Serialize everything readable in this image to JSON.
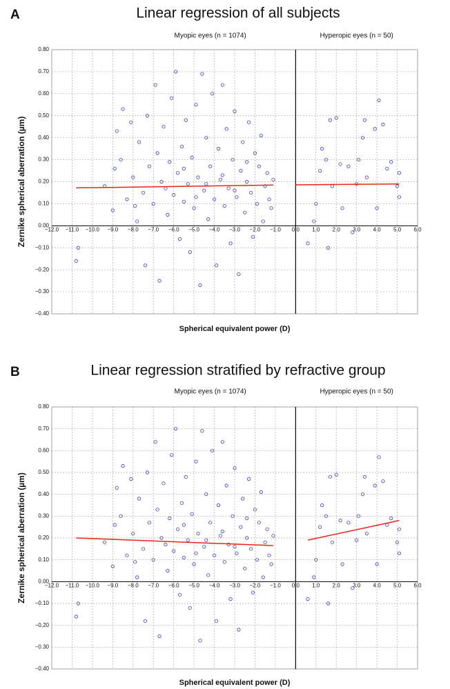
{
  "chart_data": [
    {
      "type": "scatter",
      "panel": "A",
      "title": "Linear regression of all subjects",
      "annotations": [
        "Myopic eyes (n = 1074)",
        "Hyperopic eyes (n = 50)"
      ],
      "xlabel": "Spherical equivalent power (D)",
      "ylabel": "Zernike spherical aberration (µm)",
      "xlim": [
        -12,
        6
      ],
      "ylim": [
        -0.4,
        0.8
      ],
      "grid": true,
      "xticks": [
        {
          "value": -12,
          "label": "−12.0"
        },
        {
          "value": -11,
          "label": "−11.0"
        },
        {
          "value": -10,
          "label": "−10.0"
        },
        {
          "value": -9,
          "label": "−9.0"
        },
        {
          "value": -8,
          "label": "−8.0"
        },
        {
          "value": -7,
          "label": "−7.0"
        },
        {
          "value": -6,
          "label": "−6.0"
        },
        {
          "value": -5,
          "label": "−5.0"
        },
        {
          "value": -4,
          "label": "−4.0"
        },
        {
          "value": -3,
          "label": "−3.0"
        },
        {
          "value": -2,
          "label": "−2.0"
        },
        {
          "value": -1,
          "label": "−1.0"
        },
        {
          "value": 0,
          "label": "0.0"
        },
        {
          "value": 1,
          "label": "1.0"
        },
        {
          "value": 2,
          "label": "2.0"
        },
        {
          "value": 3,
          "label": "3.0"
        },
        {
          "value": 4,
          "label": "4.0"
        },
        {
          "value": 5,
          "label": "5.0"
        },
        {
          "value": 6,
          "label": "6.0"
        }
      ],
      "yticks": [
        {
          "value": -0.4,
          "label": "−0.40"
        },
        {
          "value": -0.3,
          "label": "−0.30"
        },
        {
          "value": -0.2,
          "label": "−0.20"
        },
        {
          "value": -0.1,
          "label": "−0.10"
        },
        {
          "value": 0,
          "label": "0.00"
        },
        {
          "value": 0.1,
          "label": "0.10"
        },
        {
          "value": 0.2,
          "label": "0.20"
        },
        {
          "value": 0.3,
          "label": "0.30"
        },
        {
          "value": 0.4,
          "label": "0.40"
        },
        {
          "value": 0.5,
          "label": "0.50"
        },
        {
          "value": 0.6,
          "label": "0.60"
        },
        {
          "value": 0.7,
          "label": "0.70"
        },
        {
          "value": 0.8,
          "label": "0.80"
        }
      ],
      "points": {
        "color": "#3b3ba8",
        "x": [
          -10.8,
          -10.7,
          -9.4,
          -9.0,
          -8.8,
          -8.6,
          -8.5,
          -8.3,
          -8.1,
          -8.0,
          -7.8,
          -7.7,
          -7.5,
          -7.4,
          -7.3,
          -7.2,
          -7.0,
          -6.9,
          -6.8,
          -6.7,
          -6.6,
          -6.5,
          -6.3,
          -6.2,
          -6.1,
          -6.0,
          -5.9,
          -5.8,
          -5.7,
          -5.6,
          -5.5,
          -5.4,
          -5.3,
          -5.2,
          -5.1,
          -5.0,
          -4.9,
          -4.8,
          -4.7,
          -4.6,
          -4.5,
          -4.4,
          -4.3,
          -4.2,
          -4.1,
          -4.0,
          -3.9,
          -3.8,
          -3.7,
          -3.6,
          -3.5,
          -3.4,
          -3.3,
          -3.2,
          -3.1,
          -3.0,
          -2.9,
          -2.8,
          -2.7,
          -2.6,
          -2.5,
          -2.4,
          -2.3,
          -2.2,
          -2.1,
          -2.0,
          -1.9,
          -1.8,
          -1.7,
          -1.6,
          -1.5,
          -1.4,
          -1.3,
          -1.2,
          -1.1,
          -8.9,
          -7.9,
          -6.4,
          -5.5,
          -4.4,
          -3.6,
          -2.4,
          -4.9,
          -3.0,
          0.6,
          0.9,
          1.0,
          1.2,
          1.3,
          1.5,
          1.6,
          1.7,
          1.8,
          2.0,
          2.2,
          2.3,
          2.6,
          2.8,
          3.0,
          3.1,
          3.3,
          3.4,
          3.5,
          3.9,
          4.0,
          4.1,
          4.3,
          4.5,
          4.7,
          5.0,
          5.1,
          5.1
        ],
        "y": [
          -0.16,
          -0.1,
          0.18,
          0.07,
          0.43,
          0.3,
          0.53,
          0.12,
          0.47,
          0.22,
          0.02,
          0.38,
          0.15,
          -0.18,
          0.5,
          0.27,
          0.1,
          0.64,
          0.33,
          -0.25,
          0.2,
          0.45,
          0.05,
          0.29,
          0.58,
          0.14,
          0.7,
          0.24,
          -0.06,
          0.36,
          0.11,
          0.48,
          0.19,
          -0.12,
          0.31,
          0.08,
          0.55,
          0.22,
          -0.27,
          0.69,
          0.16,
          0.4,
          0.03,
          0.27,
          0.6,
          0.12,
          -0.18,
          0.35,
          0.21,
          0.64,
          0.09,
          0.44,
          0.17,
          -0.08,
          0.3,
          0.52,
          0.13,
          -0.22,
          0.25,
          0.38,
          0.06,
          0.2,
          0.47,
          0.15,
          -0.05,
          0.33,
          0.1,
          0.27,
          0.41,
          0.02,
          0.18,
          0.24,
          0.12,
          0.08,
          0.21,
          0.26,
          0.09,
          0.17,
          0.26,
          0.19,
          0.23,
          0.29,
          0.13,
          0.16,
          -0.08,
          0.02,
          0.1,
          0.25,
          0.35,
          0.3,
          -0.1,
          0.48,
          0.18,
          0.49,
          0.28,
          0.08,
          0.27,
          -0.03,
          0.19,
          0.3,
          0.4,
          0.48,
          0.22,
          0.44,
          0.08,
          0.57,
          0.46,
          0.26,
          0.29,
          0.18,
          0.13,
          0.24
        ]
      },
      "fits": [
        {
          "color": "#e8231e",
          "x": [
            -10.8,
            -1.1
          ],
          "y": [
            0.172,
            0.185
          ]
        },
        {
          "color": "#e8231e",
          "x": [
            0,
            5.1
          ],
          "y": [
            0.186,
            0.19
          ]
        }
      ]
    },
    {
      "type": "scatter",
      "panel": "B",
      "title": "Linear regression stratified by refractive group",
      "annotations": [
        "Myopic eyes (n = 1074)",
        "Hyperopic eyes (n = 50)"
      ],
      "xlabel": "Spherical equivalent power (D)",
      "ylabel": "Zernike spherical aberration (µm)",
      "xlim": [
        -12,
        6
      ],
      "ylim": [
        -0.4,
        0.8
      ],
      "grid": true,
      "xticks": [
        {
          "value": -12,
          "label": "−12.0"
        },
        {
          "value": -11,
          "label": "−11.0"
        },
        {
          "value": -10,
          "label": "−10.0"
        },
        {
          "value": -9,
          "label": "−9.0"
        },
        {
          "value": -8,
          "label": "−8.0"
        },
        {
          "value": -7,
          "label": "−7.0"
        },
        {
          "value": -6,
          "label": "−6.0"
        },
        {
          "value": -5,
          "label": "−5.0"
        },
        {
          "value": -4,
          "label": "−4.0"
        },
        {
          "value": -3,
          "label": "−3.0"
        },
        {
          "value": -2,
          "label": "−2.0"
        },
        {
          "value": -1,
          "label": "−1.0"
        },
        {
          "value": 0,
          "label": "0.0"
        },
        {
          "value": 1,
          "label": "1.0"
        },
        {
          "value": 2,
          "label": "2.0"
        },
        {
          "value": 3,
          "label": "3.0"
        },
        {
          "value": 4,
          "label": "4.0"
        },
        {
          "value": 5,
          "label": "5.0"
        },
        {
          "value": 6,
          "label": "6.0"
        }
      ],
      "yticks": [
        {
          "value": -0.4,
          "label": "−0.40"
        },
        {
          "value": -0.3,
          "label": "−0.30"
        },
        {
          "value": -0.2,
          "label": "−0.20"
        },
        {
          "value": -0.1,
          "label": "−0.10"
        },
        {
          "value": 0,
          "label": "0.00"
        },
        {
          "value": 0.1,
          "label": "0.10"
        },
        {
          "value": 0.2,
          "label": "0.20"
        },
        {
          "value": 0.3,
          "label": "0.30"
        },
        {
          "value": 0.4,
          "label": "0.40"
        },
        {
          "value": 0.5,
          "label": "0.50"
        },
        {
          "value": 0.6,
          "label": "0.60"
        },
        {
          "value": 0.7,
          "label": "0.70"
        },
        {
          "value": 0.8,
          "label": "0.80"
        }
      ],
      "points": {
        "color": "#3b3ba8",
        "x": [
          -10.8,
          -10.7,
          -9.4,
          -9.0,
          -8.8,
          -8.6,
          -8.5,
          -8.3,
          -8.1,
          -8.0,
          -7.8,
          -7.7,
          -7.5,
          -7.4,
          -7.3,
          -7.2,
          -7.0,
          -6.9,
          -6.8,
          -6.7,
          -6.6,
          -6.5,
          -6.3,
          -6.2,
          -6.1,
          -6.0,
          -5.9,
          -5.8,
          -5.7,
          -5.6,
          -5.5,
          -5.4,
          -5.3,
          -5.2,
          -5.1,
          -5.0,
          -4.9,
          -4.8,
          -4.7,
          -4.6,
          -4.5,
          -4.4,
          -4.3,
          -4.2,
          -4.1,
          -4.0,
          -3.9,
          -3.8,
          -3.7,
          -3.6,
          -3.5,
          -3.4,
          -3.3,
          -3.2,
          -3.1,
          -3.0,
          -2.9,
          -2.8,
          -2.7,
          -2.6,
          -2.5,
          -2.4,
          -2.3,
          -2.2,
          -2.1,
          -2.0,
          -1.9,
          -1.8,
          -1.7,
          -1.6,
          -1.5,
          -1.4,
          -1.3,
          -1.2,
          -1.1,
          -8.9,
          -7.9,
          -6.4,
          -5.5,
          -4.4,
          -3.6,
          -2.4,
          -4.9,
          -3.0,
          0.6,
          0.9,
          1.0,
          1.2,
          1.3,
          1.5,
          1.6,
          1.7,
          1.8,
          2.0,
          2.2,
          2.3,
          2.6,
          2.8,
          3.0,
          3.1,
          3.3,
          3.4,
          3.5,
          3.9,
          4.0,
          4.1,
          4.3,
          4.5,
          4.7,
          5.0,
          5.1,
          5.1
        ],
        "y": [
          -0.16,
          -0.1,
          0.18,
          0.07,
          0.43,
          0.3,
          0.53,
          0.12,
          0.47,
          0.22,
          0.02,
          0.38,
          0.15,
          -0.18,
          0.5,
          0.27,
          0.1,
          0.64,
          0.33,
          -0.25,
          0.2,
          0.45,
          0.05,
          0.29,
          0.58,
          0.14,
          0.7,
          0.24,
          -0.06,
          0.36,
          0.11,
          0.48,
          0.19,
          -0.12,
          0.31,
          0.08,
          0.55,
          0.22,
          -0.27,
          0.69,
          0.16,
          0.4,
          0.03,
          0.27,
          0.6,
          0.12,
          -0.18,
          0.35,
          0.21,
          0.64,
          0.09,
          0.44,
          0.17,
          -0.08,
          0.3,
          0.52,
          0.13,
          -0.22,
          0.25,
          0.38,
          0.06,
          0.2,
          0.47,
          0.15,
          -0.05,
          0.33,
          0.1,
          0.27,
          0.41,
          0.02,
          0.18,
          0.24,
          0.12,
          0.08,
          0.21,
          0.26,
          0.09,
          0.17,
          0.26,
          0.19,
          0.23,
          0.29,
          0.13,
          0.16,
          -0.08,
          0.02,
          0.1,
          0.25,
          0.35,
          0.3,
          -0.1,
          0.48,
          0.18,
          0.49,
          0.28,
          0.08,
          0.27,
          -0.03,
          0.19,
          0.3,
          0.4,
          0.48,
          0.22,
          0.44,
          0.08,
          0.57,
          0.46,
          0.26,
          0.29,
          0.18,
          0.13,
          0.24
        ]
      },
      "fits": [
        {
          "color": "#e8231e",
          "x": [
            -10.8,
            -1.1
          ],
          "y": [
            0.2,
            0.165
          ]
        },
        {
          "color": "#e8231e",
          "x": [
            0.6,
            5.1
          ],
          "y": [
            0.19,
            0.28
          ]
        }
      ]
    }
  ]
}
